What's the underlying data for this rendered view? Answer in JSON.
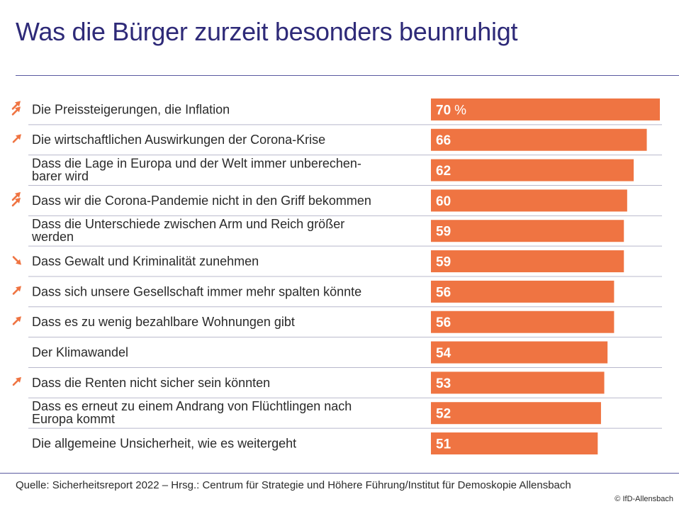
{
  "chart_data": {
    "type": "bar",
    "orientation": "horizontal",
    "title": "Was die Bürger zurzeit besonders beunruhigt",
    "unit": "%",
    "xlim": [
      0,
      70
    ],
    "bar_color": "#ef7442",
    "text_color": "#2e2a78",
    "arrow_color": "#ef7442",
    "categories": [
      [
        "Die Preissteigerungen, die Inflation"
      ],
      [
        "Die wirtschaftlichen Auswirkungen der Corona-Krise"
      ],
      [
        "Dass die Lage in Europa und der Welt immer unberechen-",
        "barer wird"
      ],
      [
        "Dass wir die Corona-Pandemie nicht in den Griff bekommen"
      ],
      [
        "Dass die Unterschiede zwischen Arm und Reich größer",
        "werden"
      ],
      [
        "Dass Gewalt und Kriminalität zunehmen"
      ],
      [
        "Dass sich unsere Gesellschaft immer mehr spalten könnte"
      ],
      [
        "Dass es zu wenig bezahlbare Wohnungen gibt"
      ],
      [
        "Der Klimawandel"
      ],
      [
        "Dass die Renten nicht sicher sein könnten"
      ],
      [
        "Dass es erneut zu einem Andrang von Flüchtlingen nach",
        "Europa kommt"
      ],
      [
        "Die allgemeine Unsicherheit, wie es weitergeht"
      ]
    ],
    "values": [
      70,
      66,
      62,
      60,
      59,
      59,
      56,
      56,
      54,
      53,
      52,
      51
    ],
    "trend_icons": [
      "double-up",
      "up",
      "none",
      "double-up",
      "none",
      "down",
      "up",
      "up",
      "none",
      "up",
      "none",
      "none"
    ]
  },
  "source": "Quelle: Sicherheitsreport 2022 – Hrsg.: Centrum für Strategie und Höhere Führung/Institut für Demoskopie Allensbach",
  "copyright": "© IfD-Allensbach"
}
